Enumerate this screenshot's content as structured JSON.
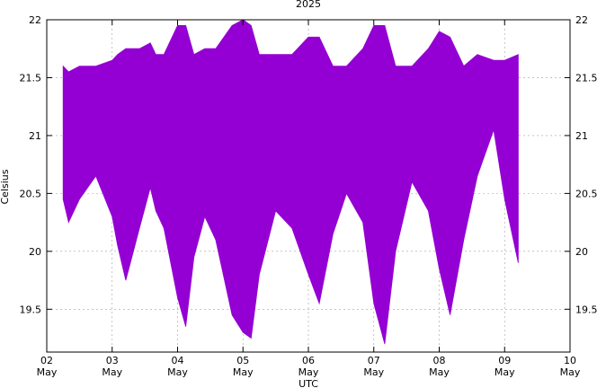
{
  "chart_data": {
    "type": "area",
    "title": "2025",
    "xlabel": "UTC",
    "ylabel": "Celsius",
    "xlim": [
      "2025-05-02",
      "2025-05-10"
    ],
    "ylim": [
      19.13,
      22
    ],
    "grid": true,
    "legend": "none",
    "x_ticks": [
      {
        "day": "02",
        "month": "May"
      },
      {
        "day": "03",
        "month": "May"
      },
      {
        "day": "04",
        "month": "May"
      },
      {
        "day": "05",
        "month": "May"
      },
      {
        "day": "06",
        "month": "May"
      },
      {
        "day": "07",
        "month": "May"
      },
      {
        "day": "08",
        "month": "May"
      },
      {
        "day": "09",
        "month": "May"
      },
      {
        "day": "10",
        "month": "May"
      }
    ],
    "y_ticks": [
      "19.5",
      "20",
      "20.5",
      "21",
      "21.5",
      "22"
    ],
    "y_tick_values": [
      19.5,
      20,
      20.5,
      21,
      21.5,
      22
    ],
    "series": [
      {
        "color": "#9400d3",
        "x": [
          "2025-05-02 06:00",
          "2025-05-02 08:00",
          "2025-05-02 12:00",
          "2025-05-02 18:00",
          "2025-05-03 00:00",
          "2025-05-03 02:00",
          "2025-05-03 05:00",
          "2025-05-03 10:00",
          "2025-05-03 14:00",
          "2025-05-03 16:00",
          "2025-05-03 19:00",
          "2025-05-04 00:00",
          "2025-05-04 03:00",
          "2025-05-04 06:00",
          "2025-05-04 10:00",
          "2025-05-04 14:00",
          "2025-05-04 20:00",
          "2025-05-05 00:00",
          "2025-05-05 03:00",
          "2025-05-05 06:00",
          "2025-05-05 12:00",
          "2025-05-05 18:00",
          "2025-05-06 00:00",
          "2025-05-06 04:00",
          "2025-05-06 09:00",
          "2025-05-06 14:00",
          "2025-05-06 20:00",
          "2025-05-07 00:00",
          "2025-05-07 04:00",
          "2025-05-07 08:00",
          "2025-05-07 14:00",
          "2025-05-07 20:00",
          "2025-05-08 00:00",
          "2025-05-08 04:00",
          "2025-05-08 09:00",
          "2025-05-08 14:00",
          "2025-05-08 20:00",
          "2025-05-09 00:00",
          "2025-05-09 05:00"
        ],
        "min": [
          20.45,
          20.25,
          20.45,
          20.65,
          20.3,
          20.05,
          19.75,
          20.2,
          20.55,
          20.35,
          20.2,
          19.6,
          19.35,
          19.95,
          20.3,
          20.1,
          19.45,
          19.3,
          19.25,
          19.8,
          20.35,
          20.2,
          19.8,
          19.55,
          20.15,
          20.5,
          20.25,
          19.55,
          19.2,
          20.0,
          20.6,
          20.35,
          19.85,
          19.45,
          20.1,
          20.65,
          21.05,
          20.45,
          19.9
        ],
        "max": [
          21.6,
          21.55,
          21.6,
          21.6,
          21.65,
          21.7,
          21.75,
          21.75,
          21.8,
          21.7,
          21.7,
          21.95,
          21.95,
          21.7,
          21.75,
          21.75,
          21.95,
          22.0,
          21.95,
          21.7,
          21.7,
          21.7,
          21.85,
          21.85,
          21.6,
          21.6,
          21.75,
          21.95,
          21.95,
          21.6,
          21.6,
          21.75,
          21.9,
          21.85,
          21.6,
          21.7,
          21.65,
          21.65,
          21.7
        ]
      }
    ]
  }
}
